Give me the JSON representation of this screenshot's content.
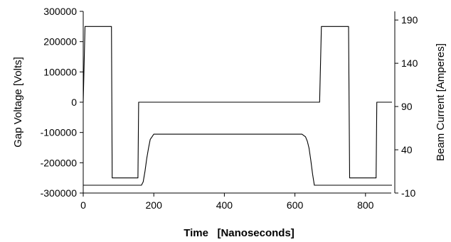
{
  "chart_data": {
    "type": "line",
    "xlabel": "Time   [Nanoseconds]",
    "ylabel": "Gap Voltage [Volts]",
    "y2label": "Beam Current  [Amperes]",
    "xlim": [
      0,
      875
    ],
    "ylim": [
      -300000,
      300000
    ],
    "y2lim": [
      -10,
      200
    ],
    "x_ticks": [
      0,
      200,
      400,
      600,
      800
    ],
    "x_tick_labels": [
      "0",
      "200",
      "400",
      "600",
      "800"
    ],
    "y_ticks": [
      300000,
      200000,
      100000,
      0,
      -100000,
      -200000,
      -300000
    ],
    "y_tick_labels": [
      "300000",
      "200000",
      "100000",
      "0",
      "-100000",
      "-200000",
      "-300000"
    ],
    "y2_ticks": [
      190,
      140,
      90,
      40,
      -10
    ],
    "y2_tick_labels": [
      "190",
      "140",
      "90",
      "40",
      "-10"
    ],
    "grid": false,
    "series": [
      {
        "axis": "left",
        "x": [
          0,
          5,
          80,
          82,
          155,
          157,
          670,
          675,
          752,
          755,
          830,
          832,
          875
        ],
        "y": [
          0,
          250000,
          250000,
          -250000,
          -250000,
          0,
          0,
          250000,
          250000,
          -250000,
          -250000,
          0,
          0
        ]
      },
      {
        "axis": "right",
        "x": [
          0,
          165,
          170,
          175,
          180,
          185,
          190,
          200,
          620,
          630,
          635,
          640,
          645,
          650,
          655,
          875
        ],
        "y": [
          -1,
          -1,
          3,
          15,
          30,
          42,
          52,
          58,
          58,
          55,
          50,
          42,
          28,
          12,
          -1,
          -1
        ]
      }
    ]
  }
}
